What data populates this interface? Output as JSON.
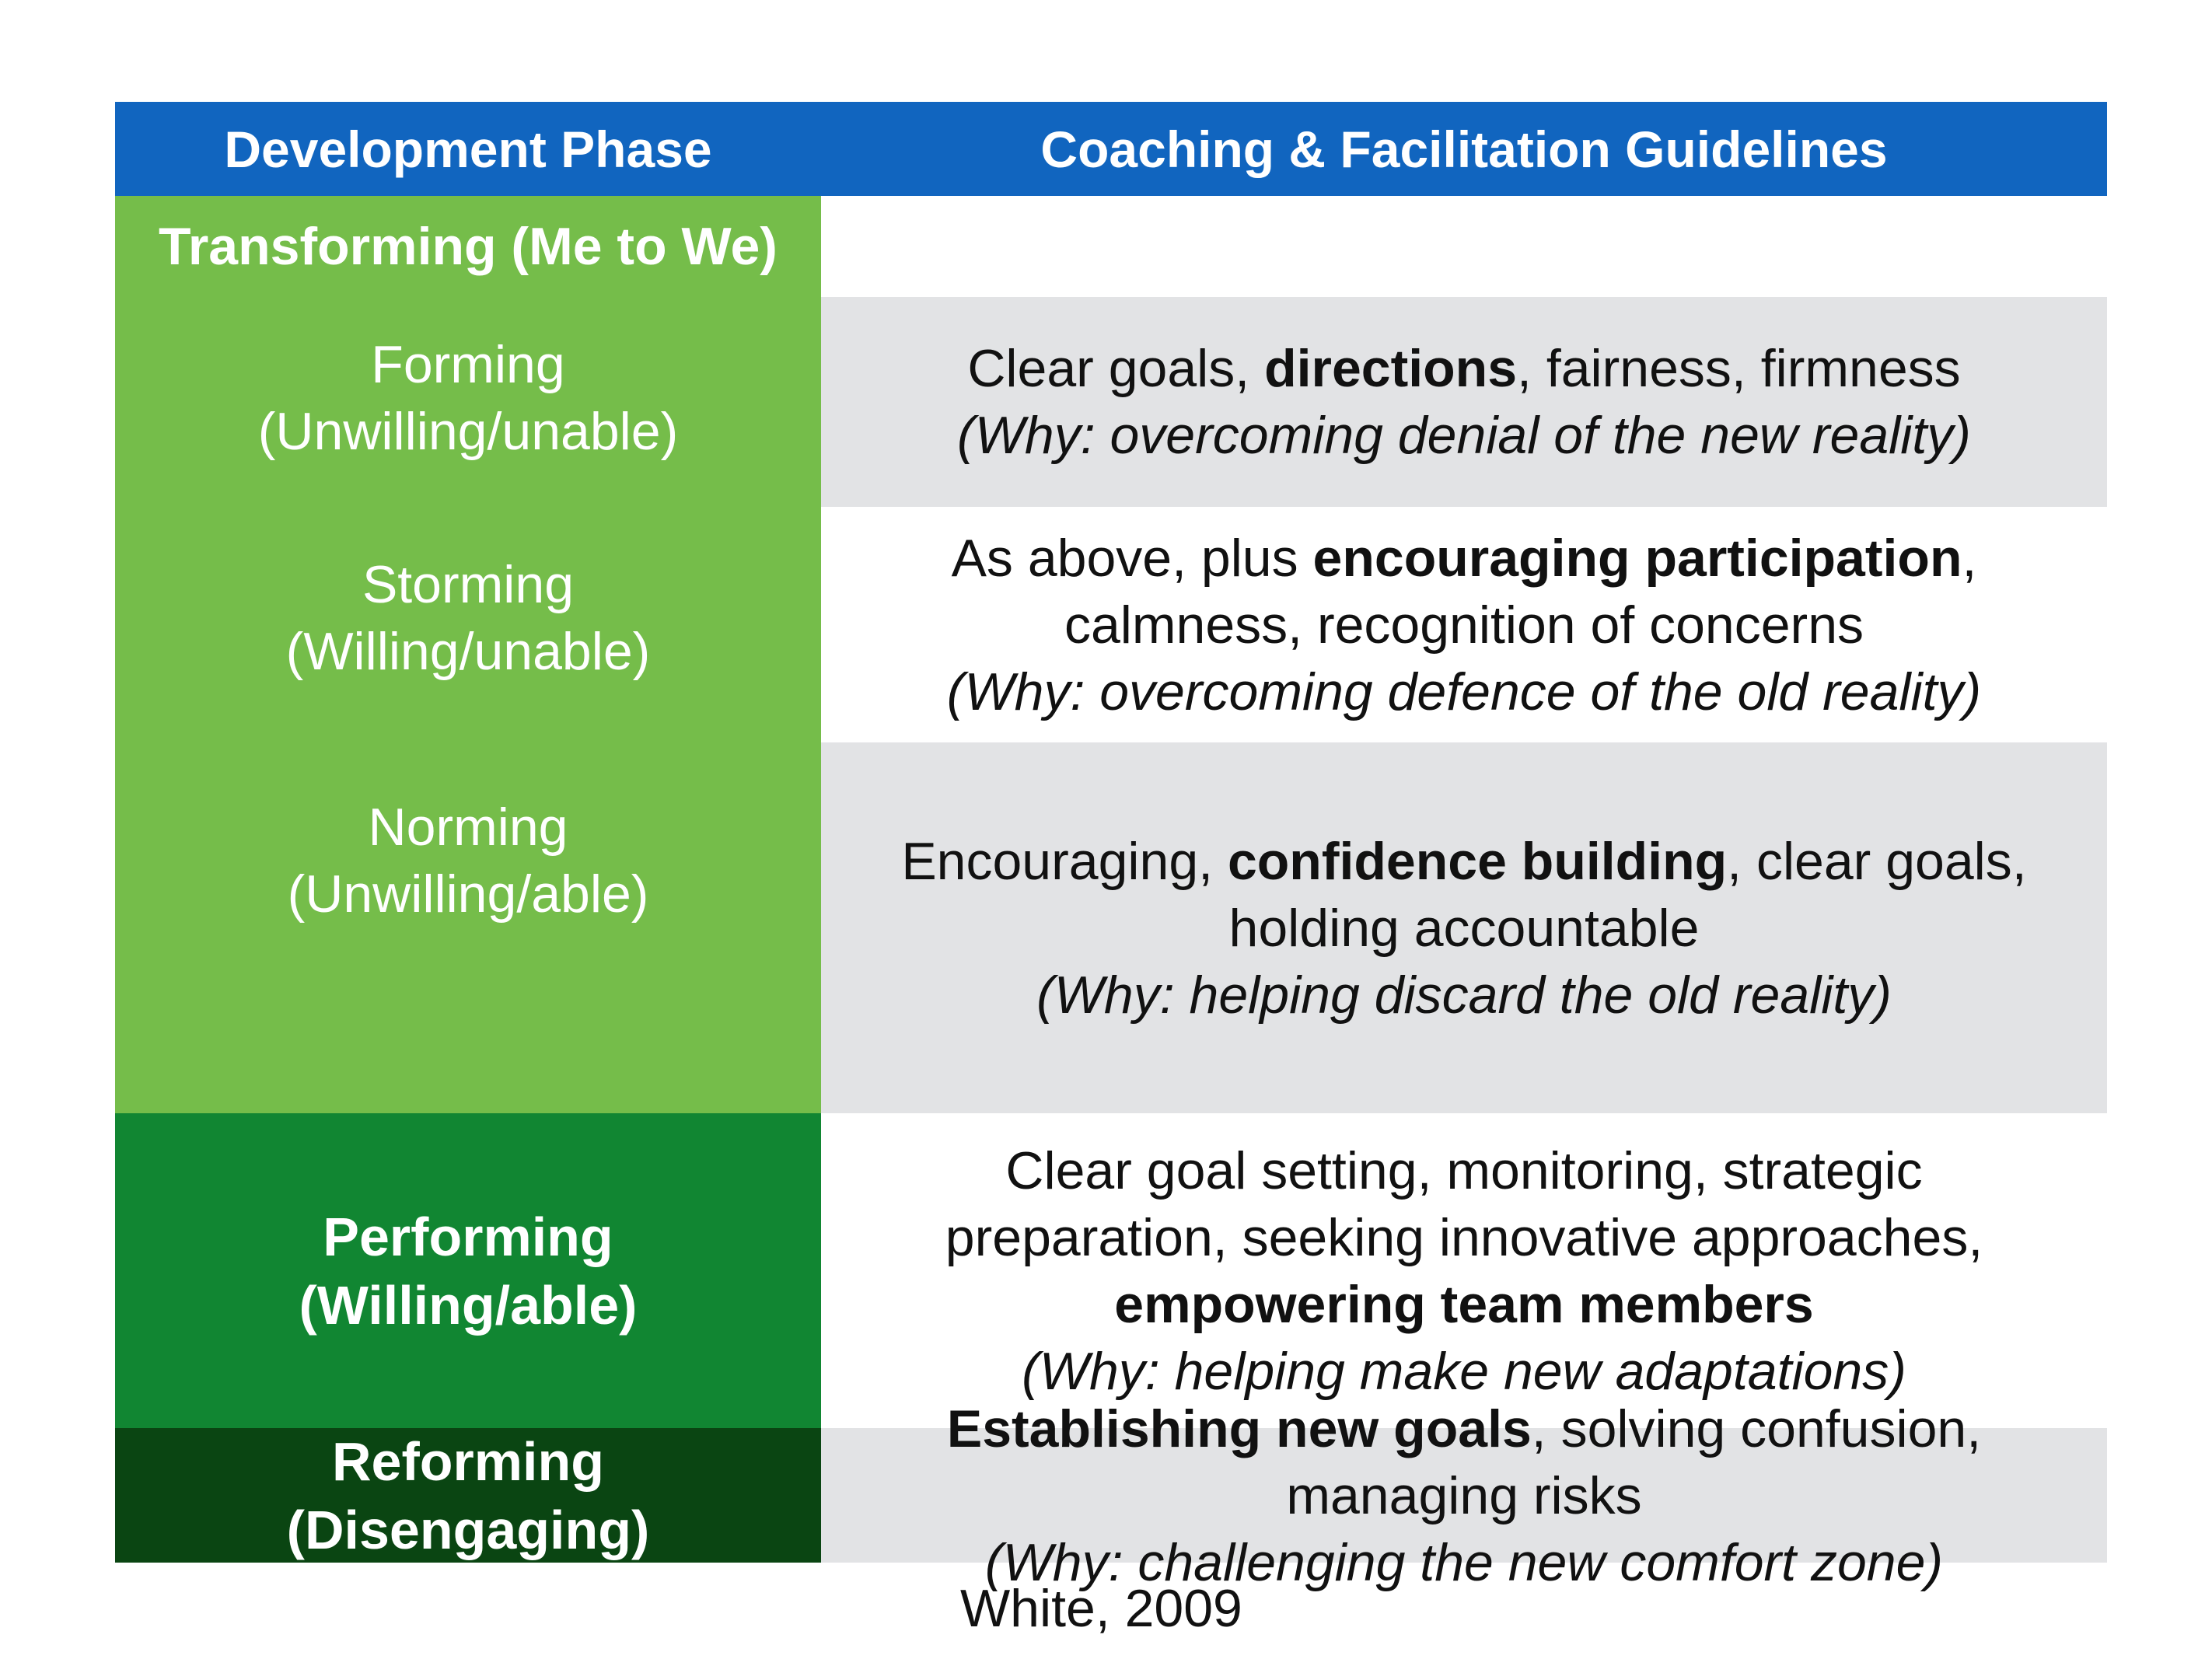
{
  "header": {
    "phase_col": "Development Phase",
    "guide_col": "Coaching & Facilitation Guidelines"
  },
  "group": {
    "title": "Transforming (Me to We)"
  },
  "phases": {
    "forming": {
      "name": "Forming",
      "state": "(Unwilling/unable)"
    },
    "storming": {
      "name": "Storming",
      "state": "(Willing/unable)"
    },
    "norming": {
      "name": "Norming",
      "state": "(Unwilling/able)"
    },
    "performing": {
      "name": "Performing",
      "state": "(Willing/able)"
    },
    "reforming": {
      "name": "Reforming",
      "state": "(Disengaging)"
    }
  },
  "guidelines": {
    "forming": {
      "pre": "Clear goals, ",
      "bold": "directions",
      "post": ", fairness, firmness",
      "why": "(Why: overcoming denial of the new reality)"
    },
    "storming": {
      "pre": "As above, plus ",
      "bold": "encouraging participation",
      "post": ",",
      "line2": "calmness, recognition of concerns",
      "why": "(Why: overcoming defence of the old reality)"
    },
    "norming": {
      "pre": "Encouraging, ",
      "bold": "confidence building",
      "post": ", clear goals,",
      "line2": "holding accountable",
      "why": "(Why: helping discard the old reality)"
    },
    "performing": {
      "line1": "Clear goal setting, monitoring, strategic",
      "line2": "preparation, seeking innovative approaches,",
      "bold": "empowering team members",
      "why": "(Why: helping make new adaptations)"
    },
    "reforming": {
      "bold": "Establishing new goals",
      "post": ", solving confusion,",
      "line2": "managing risks",
      "why": "(Why: challenging the new comfort zone)"
    }
  },
  "colors": {
    "header_blue": "#1165bf",
    "light_green": "#75bd4a",
    "mid_green": "#118632",
    "dark_green": "#0a4512",
    "row_grey": "#e2e3e5"
  },
  "citation": "White, 2009"
}
